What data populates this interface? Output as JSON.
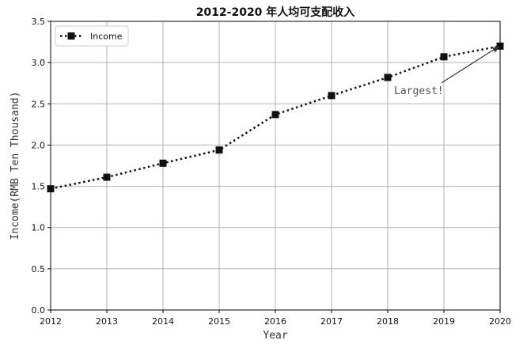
{
  "chart_data": {
    "type": "line",
    "title": "2012-2020 年人均可支配收入",
    "xlabel": "Year",
    "ylabel": "Income(RMB Ten Thousand)",
    "x": [
      "2012",
      "2013",
      "2014",
      "2015",
      "2016",
      "2017",
      "2018",
      "2019",
      "2020"
    ],
    "series": [
      {
        "name": "Income",
        "values": [
          1.47,
          1.61,
          1.78,
          1.94,
          2.37,
          2.6,
          2.82,
          3.07,
          3.2
        ],
        "color": "#111111",
        "line_style": "dotted",
        "marker": "square"
      }
    ],
    "ylim": [
      0,
      3.5
    ],
    "yticks": [
      "0.0",
      "0.5",
      "1.0",
      "1.5",
      "2.0",
      "2.5",
      "3.0",
      "3.5"
    ],
    "grid": true,
    "legend_position": "top-left",
    "annotation": {
      "text": "Largest!",
      "target_x": "2020",
      "target_y": 3.2,
      "text_anchor_x": "2018",
      "text_anchor_y": 2.62
    }
  }
}
